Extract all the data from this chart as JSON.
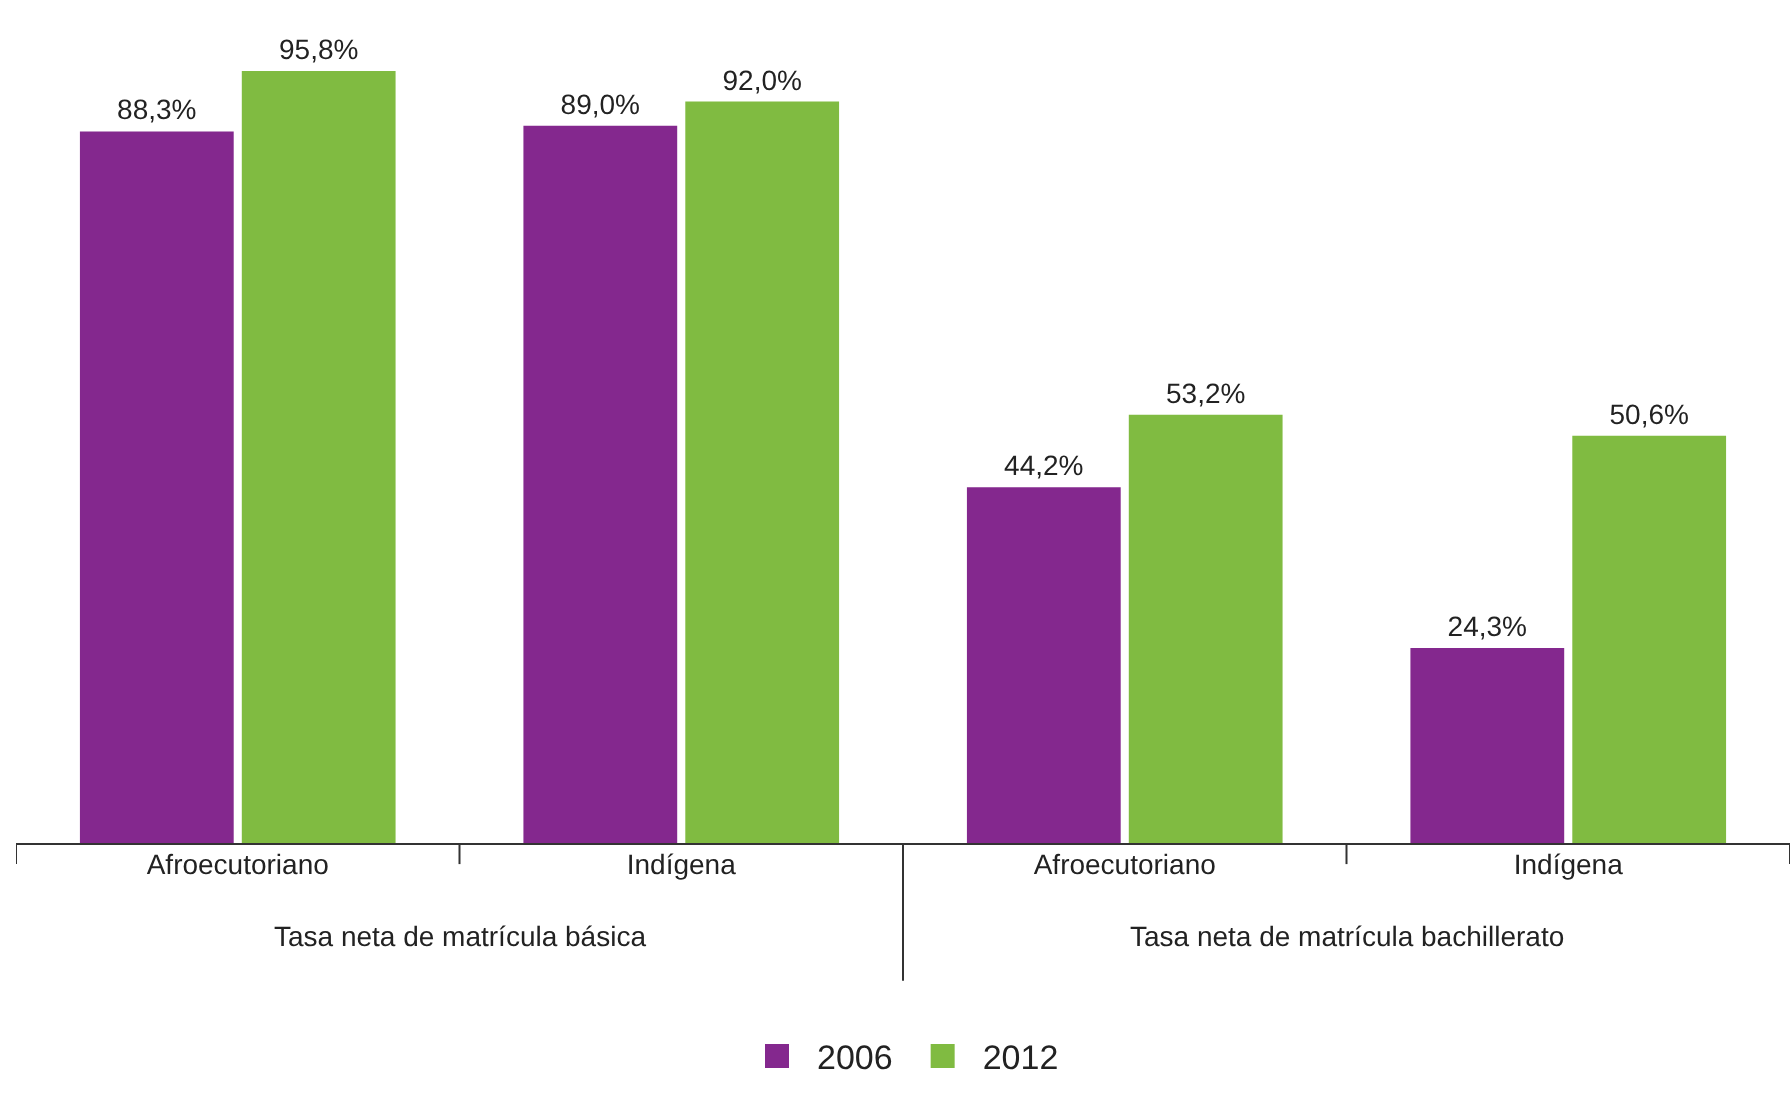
{
  "chart_data": {
    "type": "bar",
    "categories": [
      "Afroecutoriano",
      "Indígena",
      "Afroecutoriano",
      "Indígena"
    ],
    "series": [
      {
        "name": "2006",
        "color": "#84288e",
        "values": [
          88.3,
          89.0,
          44.2,
          24.3
        ],
        "value_labels": [
          "88,3%",
          "89,0%",
          "44,2%",
          "24,3%"
        ]
      },
      {
        "name": "2012",
        "color": "#80bb41",
        "values": [
          95.8,
          92.0,
          53.2,
          50.6
        ],
        "value_labels": [
          "95,8%",
          "92,0%",
          "53,2%",
          "50,6%"
        ]
      }
    ],
    "annotations": [
      "Tasa neta de matrícula básica",
      "Tasa neta de matrícula bachillerato"
    ],
    "tick_labels": "x",
    "grid": false,
    "legend": "bottom"
  }
}
